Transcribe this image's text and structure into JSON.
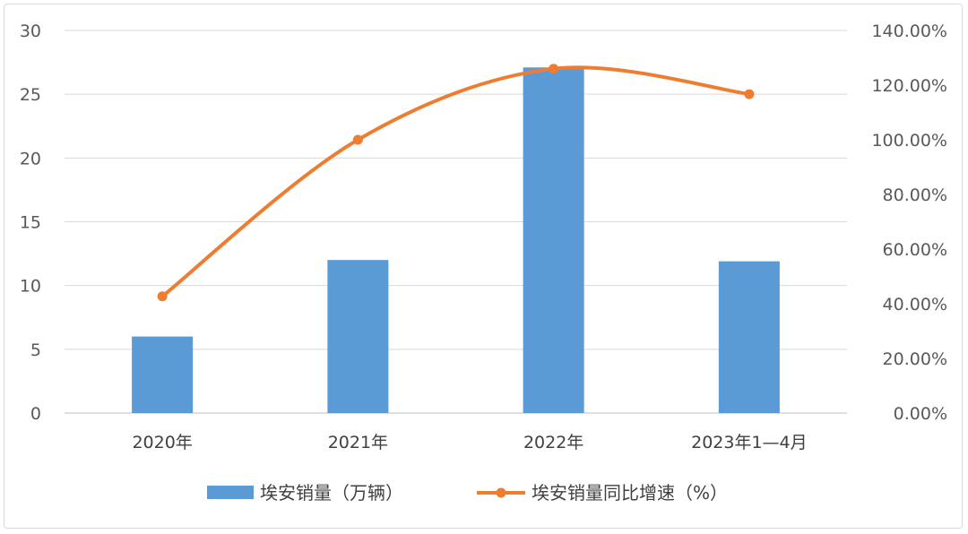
{
  "chart_data": {
    "type": "bar+line",
    "categories": [
      "2020年",
      "2021年",
      "2022年",
      "2023年1—4月"
    ],
    "series": [
      {
        "name": "埃安销量（万辆）",
        "kind": "bar",
        "axis": "left",
        "color": "#5b9bd5",
        "values": [
          6.0,
          12.0,
          27.1,
          11.9
        ]
      },
      {
        "name": "埃安销量同比增速（%）",
        "kind": "line",
        "axis": "right",
        "color": "#ed7d31",
        "values": [
          42.7,
          100.0,
          126.0,
          116.7
        ]
      }
    ],
    "y_left": {
      "min": 0,
      "max": 30,
      "step": 5,
      "ticks": [
        "0",
        "5",
        "10",
        "15",
        "20",
        "25",
        "30"
      ]
    },
    "y_right": {
      "min": 0,
      "max": 140,
      "step": 20,
      "ticks": [
        "0.00%",
        "20.00%",
        "40.00%",
        "60.00%",
        "80.00%",
        "100.00%",
        "120.00%",
        "140.00%"
      ]
    },
    "grid": true,
    "legend_position": "bottom"
  }
}
